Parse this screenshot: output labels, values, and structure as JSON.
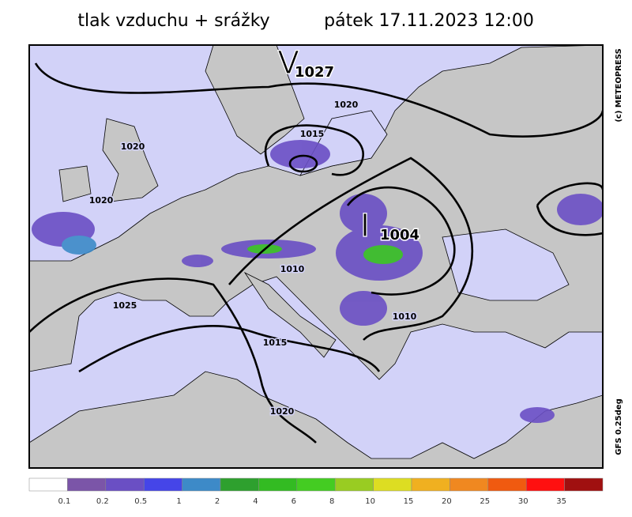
{
  "header": {
    "title": "tlak vzduchu + srážky",
    "datetime": "pátek 17.11.2023 12:00"
  },
  "credits": {
    "copyright": "(c) METEOPRESS",
    "model": "GFS 0.25deg"
  },
  "pressure_centers": [
    {
      "kind": "V",
      "value": "1027"
    },
    {
      "kind": "I",
      "value": "1004"
    }
  ],
  "isobar_labels": [
    "1020",
    "1015",
    "1020",
    "1020",
    "1010",
    "1025",
    "1010",
    "1015",
    "1020"
  ],
  "legend": {
    "labels": [
      "0.1",
      "0.2",
      "0.5",
      "1",
      "2",
      "4",
      "6",
      "8",
      "10",
      "15",
      "20",
      "25",
      "30",
      "35"
    ],
    "colors": [
      "#ffffff",
      "#7b55a8",
      "#6a4fc4",
      "#4545e8",
      "#3d8ac8",
      "#2ea02e",
      "#33bb22",
      "#44cc22",
      "#99cc22",
      "#dddd22",
      "#f0b020",
      "#f08820",
      "#f05a10",
      "#ff1010",
      "#a01010"
    ]
  }
}
